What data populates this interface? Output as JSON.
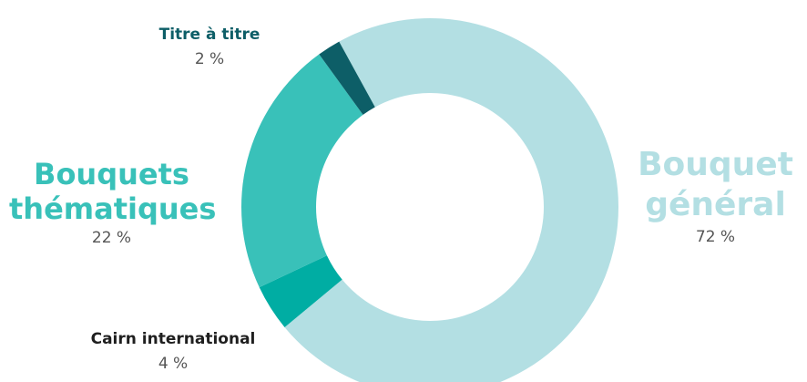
{
  "chart_data": {
    "type": "pie",
    "title": "",
    "donut": true,
    "slices": [
      {
        "name": "Bouquet général",
        "name_lines": [
          "Bouquet",
          "général"
        ],
        "value": 72,
        "value_label": "72 %",
        "color": "#b3dfe3"
      },
      {
        "name": "Cairn international",
        "name_lines": [
          "Cairn international"
        ],
        "value": 4,
        "value_label": "4 %",
        "color": "#00ada3"
      },
      {
        "name": "Bouquets thématiques",
        "name_lines": [
          "Bouquets",
          "thématiques"
        ],
        "value": 22,
        "value_label": "22 %",
        "color": "#39c1b9"
      },
      {
        "name": "Titre à titre",
        "name_lines": [
          "Titre à titre"
        ],
        "value": 2,
        "value_label": "2 %",
        "color": "#0d5e67"
      }
    ]
  },
  "labels": {
    "titre": {
      "line1": "Titre à titre",
      "value": "2 %",
      "color": "#0d5e67"
    },
    "thematiques": {
      "line1": "Bouquets",
      "line2": "thématiques",
      "value": "22 %",
      "color": "#39c1b9"
    },
    "general": {
      "line1": "Bouquet",
      "line2": "général",
      "value": "72 %",
      "color": "#b3dfe3"
    },
    "cairn": {
      "line1": "Cairn international",
      "value": "4 %",
      "color": "#1f1f1f"
    }
  }
}
